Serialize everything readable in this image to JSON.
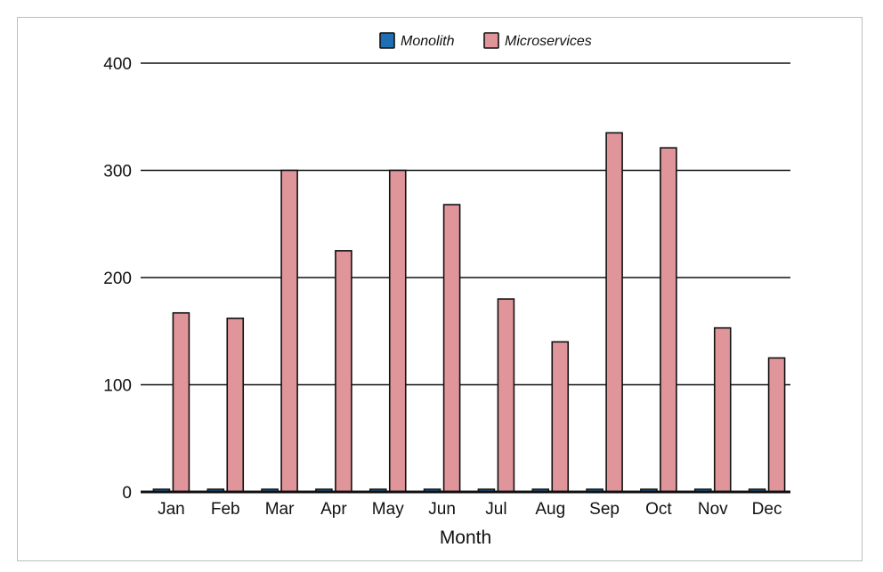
{
  "chart_data": {
    "type": "bar",
    "categories": [
      "Jan",
      "Feb",
      "Mar",
      "Apr",
      "May",
      "Jun",
      "Jul",
      "Aug",
      "Sep",
      "Oct",
      "Nov",
      "Dec"
    ],
    "series": [
      {
        "name": "Monolith",
        "color": "#1f6fb5",
        "values": [
          1,
          1,
          1,
          1,
          1,
          1,
          1,
          1,
          1,
          1,
          1,
          1
        ]
      },
      {
        "name": "Microservices",
        "color": "#e0959a",
        "values": [
          167,
          162,
          300,
          225,
          300,
          268,
          180,
          140,
          335,
          321,
          153,
          125
        ]
      }
    ],
    "title": "",
    "xlabel": "Month",
    "ylabel": "",
    "ylim": [
      0,
      400
    ],
    "yticks": [
      0,
      100,
      200,
      300,
      400
    ],
    "grid": true,
    "legend": "top-center"
  }
}
